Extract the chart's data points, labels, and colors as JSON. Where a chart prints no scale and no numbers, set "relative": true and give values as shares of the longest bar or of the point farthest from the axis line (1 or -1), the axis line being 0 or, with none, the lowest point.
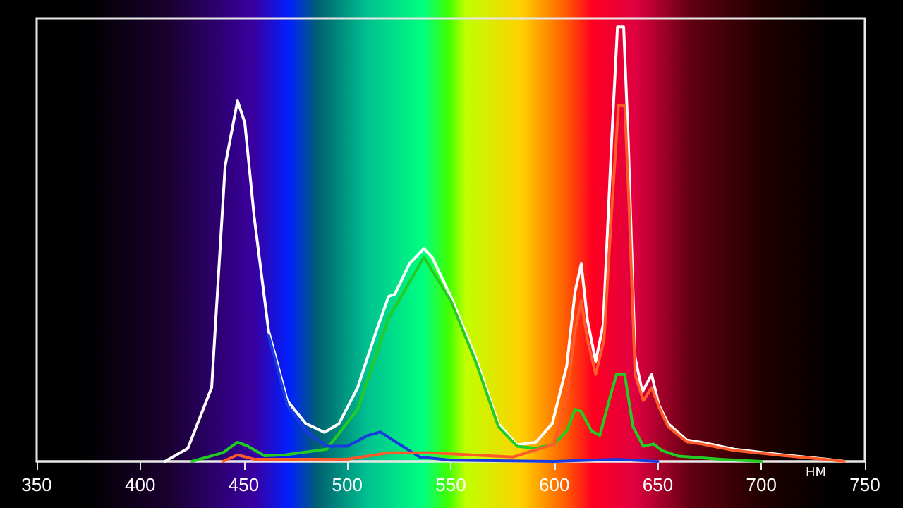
{
  "chart_data": {
    "type": "line",
    "relative": true,
    "xlabel": "НМ",
    "xlim": [
      350,
      750
    ],
    "xticks": [
      350,
      400,
      450,
      500,
      550,
      600,
      650,
      700,
      750
    ],
    "marker": "none",
    "line_style": "solid",
    "series": [
      {
        "color": "#ffffff",
        "x": [
          412,
          423,
          434.5,
          441,
          447,
          450.5,
          455,
          462,
          471,
          480,
          489,
          496,
          505,
          514,
          520,
          523,
          530,
          537,
          541,
          550,
          562,
          573,
          582,
          591,
          599,
          606,
          610,
          613,
          616,
          620,
          623.6,
          627.7,
          630.5,
          633.5,
          635.7,
          639,
          642.5,
          647,
          650.5,
          655,
          664,
          671,
          687,
          709,
          732,
          740
        ],
        "values": [
          0,
          0.03,
          0.17,
          0.68,
          0.83,
          0.78,
          0.565,
          0.3,
          0.14,
          0.087,
          0.067,
          0.087,
          0.17,
          0.3,
          0.38,
          0.385,
          0.455,
          0.49,
          0.47,
          0.38,
          0.24,
          0.087,
          0.038,
          0.044,
          0.087,
          0.22,
          0.39,
          0.455,
          0.325,
          0.23,
          0.315,
          0.74,
          1,
          1,
          0.74,
          0.24,
          0.16,
          0.2,
          0.13,
          0.087,
          0.049,
          0.044,
          0.028,
          0.016,
          0.005,
          0
        ]
      },
      {
        "color": "#22cc22",
        "x": [
          425,
          440,
          447,
          452,
          460,
          470,
          490,
          505,
          520,
          537,
          550,
          562,
          573,
          582,
          591,
          600,
          606,
          610,
          613,
          618,
          622,
          627,
          630,
          634,
          638,
          643,
          648,
          652,
          660,
          680,
          700
        ],
        "values": [
          0,
          0.02,
          0.044,
          0.035,
          0.013,
          0.015,
          0.028,
          0.12,
          0.33,
          0.47,
          0.37,
          0.23,
          0.08,
          0.035,
          0.03,
          0.04,
          0.07,
          0.12,
          0.115,
          0.07,
          0.06,
          0.15,
          0.2,
          0.2,
          0.08,
          0.035,
          0.04,
          0.025,
          0.012,
          0.005,
          0
        ]
      },
      {
        "color": "#1a3adf",
        "x": [
          462,
          471,
          480,
          490,
          500,
          510,
          516,
          525,
          535,
          550,
          600,
          630,
          650
        ],
        "values": [
          0.29,
          0.13,
          0.07,
          0.035,
          0.035,
          0.06,
          0.068,
          0.04,
          0.01,
          0.003,
          0,
          0.005,
          0
        ]
      },
      {
        "color": "#ff5a2a",
        "x": [
          440,
          447,
          455,
          500,
          520,
          540,
          560,
          580,
          600,
          606,
          610,
          613,
          616,
          620,
          624,
          628,
          631,
          634,
          636,
          639,
          643,
          647,
          651,
          655,
          664,
          671,
          687,
          709,
          732,
          740
        ],
        "values": [
          0,
          0.015,
          0.005,
          0.005,
          0.02,
          0.02,
          0.015,
          0.01,
          0.04,
          0.15,
          0.3,
          0.37,
          0.28,
          0.2,
          0.28,
          0.6,
          0.82,
          0.82,
          0.6,
          0.2,
          0.14,
          0.17,
          0.12,
          0.08,
          0.045,
          0.04,
          0.025,
          0.014,
          0.004,
          0
        ]
      }
    ]
  }
}
